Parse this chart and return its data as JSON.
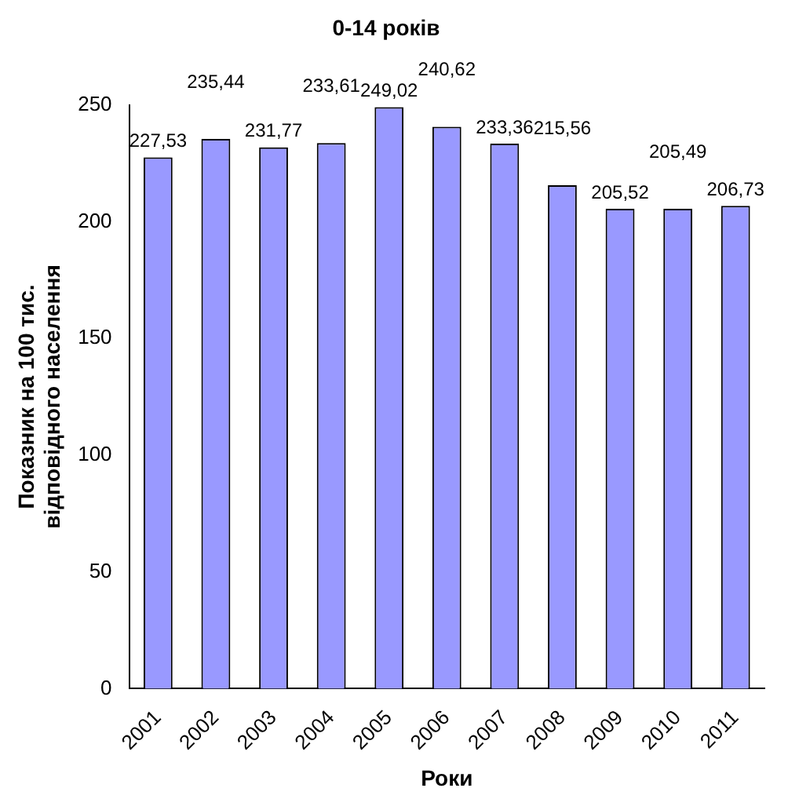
{
  "chart_data": {
    "type": "bar",
    "title": "0-14 років",
    "xlabel": "Роки",
    "ylabel": "Показник на 100 тис.\nвідповідного населення",
    "categories": [
      "2001",
      "2002",
      "2003",
      "2004",
      "2005",
      "2006",
      "2007",
      "2008",
      "2009",
      "2010",
      "2011"
    ],
    "values": [
      227.53,
      235.44,
      231.77,
      233.61,
      249.02,
      240.62,
      233.36,
      215.56,
      205.52,
      205.49,
      206.73
    ],
    "value_labels": [
      "227,53",
      "235,44",
      "231,77",
      "233,61",
      "249,02",
      "240,62",
      "233,36",
      "215,56",
      "205,52",
      "205,49",
      "206,73"
    ],
    "color": "#9999ff",
    "ylim": [
      0,
      250
    ],
    "yticks": [
      0,
      50,
      100,
      150,
      200,
      250
    ],
    "grid": false,
    "legend": false
  }
}
